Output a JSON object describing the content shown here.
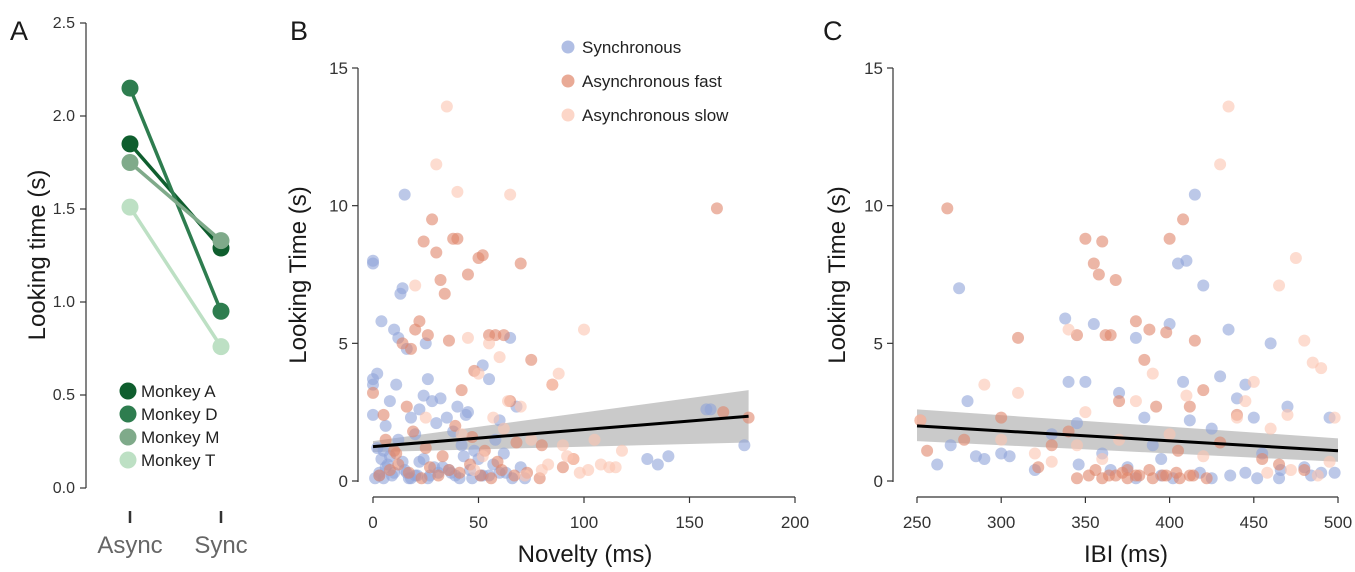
{
  "chart_data": [
    {
      "panel": "A",
      "type": "line",
      "categories": [
        "Async",
        "Sync"
      ],
      "ylabel": "Looking time (s)",
      "xlabel": "",
      "ylim": [
        0,
        2.5
      ],
      "yticks": [
        "0.0",
        "0.5",
        "1.0",
        "1.5",
        "2.0",
        "2.5"
      ],
      "series": [
        {
          "name": "Monkey A",
          "values": [
            1.85,
            1.29
          ],
          "color": "#0f5e2e"
        },
        {
          "name": "Monkey D",
          "values": [
            2.15,
            0.95
          ],
          "color": "#2e7d4f"
        },
        {
          "name": "Monkey M",
          "values": [
            1.75,
            1.33
          ],
          "color": "#7faa8a"
        },
        {
          "name": "Monkey T",
          "values": [
            1.51,
            0.76
          ],
          "color": "#bde0c4"
        }
      ],
      "legend_position": "bottom-left"
    },
    {
      "panel": "B",
      "type": "scatter",
      "xlabel": "Novelty (ms)",
      "ylabel": "Looking Time (s)",
      "xlim": [
        0,
        200
      ],
      "ylim": [
        0,
        15
      ],
      "xticks": [
        "0",
        "50",
        "100",
        "150",
        "200"
      ],
      "yticks": [
        "0",
        "5",
        "10",
        "15"
      ],
      "legend": [
        {
          "name": "Synchronous",
          "color": "#8fa3d9"
        },
        {
          "name": "Asynchronous fast",
          "color": "#e0866a"
        },
        {
          "name": "Asynchronous slow",
          "color": "#fbc4b0"
        }
      ],
      "legend_position": "top-center",
      "fit_line": {
        "x": [
          0,
          178
        ],
        "y": [
          1.25,
          2.35
        ]
      },
      "ci_band": {
        "x": [
          0,
          178
        ],
        "upper": [
          1.45,
          3.3
        ],
        "lower": [
          1.05,
          1.4
        ]
      },
      "series": [
        {
          "name": "Synchronous",
          "color": "#8fa3d9",
          "x": [
            0,
            0,
            0,
            0,
            0,
            2,
            4,
            5,
            6,
            8,
            10,
            11,
            12,
            13,
            14,
            15,
            16,
            18,
            20,
            22,
            24,
            25,
            26,
            28,
            30,
            32,
            35,
            38,
            40,
            42,
            44,
            45,
            48,
            50,
            52,
            55,
            58,
            60,
            62,
            65,
            68,
            70,
            3,
            7,
            9,
            15,
            18,
            22,
            27,
            33,
            37,
            41,
            46,
            52,
            57,
            63,
            2,
            4,
            6,
            8,
            12,
            14,
            16,
            20,
            24,
            29,
            36,
            43,
            51,
            60,
            130,
            135,
            140,
            158,
            160,
            176,
            1,
            3,
            5,
            10,
            17,
            21,
            26,
            31,
            39,
            47,
            55,
            66,
            72
          ],
          "y": [
            7.9,
            8.0,
            3.7,
            3.5,
            2.4,
            3.9,
            5.8,
            1.1,
            2.0,
            2.9,
            5.5,
            3.5,
            5.2,
            6.8,
            7.0,
            10.4,
            4.8,
            2.3,
            1.7,
            2.6,
            3.1,
            5.0,
            3.7,
            2.9,
            2.1,
            3.0,
            2.3,
            1.8,
            2.7,
            1.3,
            2.4,
            2.5,
            1.1,
            0.8,
            4.2,
            3.7,
            1.5,
            2.2,
            1.0,
            5.2,
            2.7,
            0.5,
            0.3,
            0.6,
            0.2,
            0.4,
            0.1,
            0.7,
            0.2,
            0.5,
            0.3,
            0.1,
            0.4,
            0.2,
            0.6,
            0.3,
            1.2,
            0.8,
            0.5,
            0.9,
            1.5,
            0.7,
            0.3,
            0.2,
            0.8,
            0.5,
            0.4,
            0.9,
            0.2,
            0.3,
            0.8,
            0.6,
            0.9,
            2.6,
            2.6,
            1.3,
            0.1,
            0.2,
            0.1,
            0.3,
            0.1,
            0.2,
            0.1,
            0.3,
            0.2,
            0.1,
            0.2,
            0.1,
            0.1
          ]
        },
        {
          "name": "Asynchronous fast",
          "color": "#e0866a",
          "x": [
            0,
            5,
            10,
            14,
            16,
            18,
            20,
            22,
            24,
            26,
            28,
            30,
            32,
            34,
            36,
            38,
            40,
            42,
            45,
            48,
            50,
            52,
            55,
            58,
            62,
            65,
            70,
            75,
            80,
            85,
            90,
            95,
            163,
            166,
            178,
            3,
            8,
            12,
            17,
            23,
            27,
            31,
            36,
            41,
            46,
            51,
            56,
            61,
            67,
            73,
            79,
            6,
            11,
            19,
            25,
            33,
            39,
            47,
            53,
            59,
            68
          ],
          "y": [
            3.2,
            2.4,
            1.1,
            5.0,
            2.7,
            4.8,
            5.5,
            5.8,
            8.7,
            5.3,
            9.5,
            8.3,
            7.3,
            6.8,
            5.1,
            8.8,
            8.8,
            3.3,
            7.5,
            4.0,
            8.1,
            8.2,
            5.3,
            5.3,
            5.3,
            2.9,
            7.9,
            4.4,
            1.3,
            3.5,
            0.5,
            0.8,
            9.9,
            2.5,
            2.3,
            0.2,
            0.4,
            0.6,
            0.3,
            0.1,
            0.5,
            0.2,
            0.4,
            0.3,
            0.6,
            0.2,
            0.1,
            0.4,
            0.2,
            0.3,
            0.1,
            1.5,
            1.0,
            1.8,
            1.2,
            0.9,
            2.0,
            1.6,
            1.1,
            0.7,
            1.4
          ]
        },
        {
          "name": "Asynchronous slow",
          "color": "#fbc4b0",
          "x": [
            30,
            35,
            40,
            45,
            50,
            55,
            60,
            62,
            65,
            70,
            75,
            80,
            85,
            88,
            90,
            95,
            100,
            105,
            108,
            112,
            115,
            118,
            20,
            25,
            42,
            48,
            52,
            57,
            64,
            72,
            83,
            92,
            98,
            102
          ],
          "y": [
            11.5,
            13.6,
            10.5,
            5.2,
            3.9,
            5.0,
            4.5,
            1.9,
            10.4,
            2.7,
            1.5,
            0.4,
            3.5,
            3.9,
            1.3,
            0.8,
            5.5,
            1.5,
            0.6,
            0.5,
            0.5,
            1.1,
            7.1,
            2.3,
            1.7,
            0.4,
            0.9,
            2.3,
            2.9,
            0.2,
            0.6,
            0.9,
            0.3,
            0.4
          ]
        }
      ]
    },
    {
      "panel": "C",
      "type": "scatter",
      "xlabel": "IBI (ms)",
      "ylabel": "Looking Time (s)",
      "xlim": [
        250,
        500
      ],
      "ylim": [
        0,
        15
      ],
      "xticks": [
        "250",
        "300",
        "350",
        "400",
        "450",
        "500"
      ],
      "yticks": [
        "0",
        "5",
        "10",
        "15"
      ],
      "fit_line": {
        "x": [
          250,
          500
        ],
        "y": [
          2.0,
          1.1
        ]
      },
      "ci_band": {
        "x": [
          250,
          500
        ],
        "upper": [
          2.6,
          1.55
        ],
        "lower": [
          1.45,
          0.7
        ]
      },
      "series": [
        {
          "name": "Synchronous",
          "color": "#8fa3d9",
          "x": [
            262,
            270,
            275,
            280,
            285,
            290,
            300,
            305,
            320,
            330,
            340,
            345,
            350,
            355,
            360,
            365,
            370,
            375,
            380,
            385,
            390,
            395,
            400,
            405,
            408,
            410,
            412,
            415,
            420,
            425,
            430,
            435,
            440,
            445,
            450,
            455,
            460,
            470,
            480,
            490,
            495,
            498,
            338,
            346,
            402,
            418,
            436,
            452,
            466,
            484,
            380,
            395,
            425,
            445,
            465
          ],
          "y": [
            0.6,
            1.3,
            7.0,
            2.9,
            0.9,
            0.8,
            1.0,
            0.9,
            0.4,
            1.7,
            3.6,
            2.1,
            3.6,
            5.7,
            1.0,
            0.4,
            3.2,
            0.5,
            5.2,
            2.3,
            1.3,
            0.8,
            5.7,
            7.9,
            3.6,
            8.0,
            2.2,
            10.4,
            7.1,
            1.9,
            3.8,
            5.5,
            3.0,
            3.5,
            2.3,
            1.0,
            5.0,
            2.7,
            0.5,
            0.3,
            2.3,
            0.3,
            5.9,
            0.6,
            0.1,
            0.3,
            0.2,
            0.1,
            0.4,
            0.2,
            0.1,
            0.2,
            0.1,
            0.3,
            0.1
          ]
        },
        {
          "name": "Asynchronous fast",
          "color": "#e0866a",
          "x": [
            252,
            256,
            268,
            278,
            300,
            310,
            322,
            330,
            340,
            345,
            350,
            355,
            358,
            360,
            362,
            365,
            368,
            370,
            375,
            380,
            385,
            388,
            392,
            398,
            400,
            405,
            408,
            412,
            415,
            420,
            430,
            440,
            455,
            465,
            480,
            345,
            352,
            360,
            368,
            375,
            382,
            390,
            398,
            406,
            414,
            422,
            356,
            364,
            372,
            380,
            388,
            396,
            404,
            412
          ],
          "y": [
            2.2,
            1.1,
            9.9,
            1.5,
            2.3,
            5.2,
            0.5,
            1.3,
            1.8,
            5.3,
            8.8,
            7.9,
            7.5,
            8.7,
            5.3,
            5.3,
            7.3,
            2.9,
            0.4,
            5.8,
            4.4,
            5.5,
            2.7,
            5.4,
            8.8,
            1.1,
            9.5,
            2.7,
            5.1,
            3.3,
            1.4,
            2.4,
            0.8,
            0.6,
            0.4,
            0.1,
            0.2,
            0.1,
            0.2,
            0.1,
            0.2,
            0.1,
            0.2,
            0.1,
            0.2,
            0.1,
            0.4,
            0.2,
            0.3,
            0.2,
            0.4,
            0.2,
            0.3,
            0.2
          ]
        },
        {
          "name": "Asynchronous slow",
          "color": "#fbc4b0",
          "x": [
            252,
            290,
            300,
            310,
            320,
            330,
            340,
            345,
            350,
            360,
            370,
            380,
            390,
            400,
            410,
            420,
            430,
            435,
            440,
            445,
            450,
            460,
            465,
            470,
            475,
            480,
            485,
            490,
            495,
            498,
            458,
            472,
            488
          ],
          "y": [
            2.2,
            3.5,
            1.5,
            3.2,
            1.0,
            0.7,
            5.5,
            1.3,
            2.5,
            0.8,
            1.5,
            2.9,
            3.9,
            1.7,
            3.1,
            0.9,
            11.5,
            13.6,
            2.3,
            2.9,
            3.6,
            1.9,
            7.1,
            2.4,
            8.1,
            5.1,
            4.3,
            4.1,
            0.7,
            2.3,
            0.3,
            0.4,
            0.2
          ]
        }
      ]
    }
  ],
  "panels": {
    "a": "A",
    "b": "B",
    "c": "C"
  }
}
